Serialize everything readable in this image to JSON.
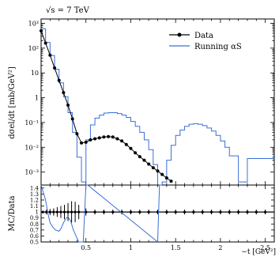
{
  "chart_data": [
    {
      "type": "line",
      "title": "√s = 7 TeV",
      "ylabel": "dσel/dt [mb/GeV²]",
      "xlabel": "",
      "xlim": [
        0,
        2.6
      ],
      "ylim": [
        0.0003,
        1500
      ],
      "yscale": "log",
      "grid": false,
      "legend": "top-right",
      "ytick_labels": [
        "10⁻³",
        "10⁻²",
        "10⁻¹",
        "1",
        "10",
        "10²",
        "10³"
      ],
      "ytick_values": [
        0.001,
        0.01,
        0.1,
        1,
        10,
        100,
        1000
      ],
      "series": [
        {
          "name": "Data",
          "style": "markers",
          "color": "#000000",
          "x": [
            0.0,
            0.05,
            0.1,
            0.15,
            0.2,
            0.25,
            0.3,
            0.35,
            0.4,
            0.45,
            0.5,
            0.55,
            0.6,
            0.65,
            0.7,
            0.75,
            0.8,
            0.85,
            0.9,
            0.95,
            1.0,
            1.05,
            1.1,
            1.15,
            1.2,
            1.25,
            1.3,
            1.35,
            1.4,
            1.45
          ],
          "y": [
            500,
            160,
            52,
            16,
            5,
            1.6,
            0.5,
            0.14,
            0.035,
            0.015,
            0.016,
            0.02,
            0.022,
            0.024,
            0.026,
            0.027,
            0.026,
            0.022,
            0.018,
            0.013,
            0.009,
            0.006,
            0.0042,
            0.003,
            0.0021,
            0.0015,
            0.0011,
            0.0008,
            0.00058,
            0.00043
          ]
        },
        {
          "name": "Running αS",
          "style": "step",
          "color": "#3a6fd8",
          "x": [
            0.0,
            0.05,
            0.1,
            0.15,
            0.2,
            0.25,
            0.3,
            0.35,
            0.4,
            0.45,
            0.5,
            0.55,
            0.6,
            0.65,
            0.7,
            0.75,
            0.8,
            0.85,
            0.9,
            0.95,
            1.0,
            1.05,
            1.1,
            1.15,
            1.2,
            1.25,
            1.3,
            1.35,
            1.4,
            1.45,
            1.5,
            1.55,
            1.6,
            1.65,
            1.7,
            1.75,
            1.8,
            1.85,
            1.9,
            1.95,
            2.0,
            2.05,
            2.1,
            2.2,
            2.3,
            2.4,
            2.6
          ],
          "y": [
            600,
            170,
            50,
            14,
            4,
            1.1,
            0.25,
            0.04,
            0.004,
            0.0004,
            0.02,
            0.08,
            0.15,
            0.2,
            0.24,
            0.25,
            0.25,
            0.23,
            0.2,
            0.16,
            0.11,
            0.07,
            0.04,
            0.02,
            0.008,
            0.002,
            0.0003,
            0.0004,
            0.003,
            0.012,
            0.03,
            0.05,
            0.07,
            0.085,
            0.09,
            0.085,
            0.075,
            0.06,
            0.045,
            0.03,
            0.018,
            0.01,
            0.0045,
            0.0004,
            0.0035,
            0.0035,
            0.004
          ]
        }
      ]
    },
    {
      "type": "line",
      "title": "",
      "ylabel": "MC/Data",
      "xlabel": "−t [GeV²]",
      "xlim": [
        0,
        2.6
      ],
      "ylim": [
        0.5,
        1.45
      ],
      "grid": false,
      "xtick_labels": [
        "0.5",
        "1",
        "1.5",
        "2",
        "2.5"
      ],
      "xtick_values": [
        0.5,
        1.0,
        1.5,
        2.0,
        2.5
      ],
      "ytick_labels": [
        "0.5",
        "0.6",
        "0.7",
        "0.8",
        "0.9",
        "1",
        "1.1",
        "1.2",
        "1.3",
        "1.4"
      ],
      "ytick_values": [
        0.5,
        0.6,
        0.7,
        0.8,
        0.9,
        1.0,
        1.1,
        1.2,
        1.3,
        1.4
      ],
      "series": [
        {
          "name": "Running αS",
          "style": "line",
          "color": "#3a6fd8",
          "x": [
            0.0,
            0.05,
            0.08,
            0.1,
            0.13,
            0.16,
            0.2,
            0.22,
            0.25,
            0.28,
            0.3,
            0.33,
            0.36,
            0.39,
            0.42,
            0.47,
            0.5,
            0.52,
            1.3,
            1.32,
            1.35
          ],
          "y": [
            1.45,
            1.2,
            0.95,
            0.82,
            0.75,
            0.7,
            0.68,
            0.72,
            0.82,
            0.9,
            0.92,
            0.85,
            0.7,
            0.6,
            0.5,
            0.5,
            1.45,
            1.45,
            0.5,
            1.45,
            1.45
          ]
        },
        {
          "name": "Data",
          "style": "bands",
          "color": "#000000",
          "x": [
            0.02,
            0.06,
            0.1,
            0.14,
            0.18,
            0.22,
            0.26,
            0.3,
            0.34,
            0.38,
            0.42,
            0.5,
            0.6,
            0.7,
            0.8,
            0.9,
            1.0,
            1.1,
            1.2,
            1.3,
            1.4,
            1.5,
            1.6,
            1.7,
            1.8,
            1.9,
            2.0,
            2.1,
            2.2,
            2.3,
            2.4,
            2.5
          ],
          "err": [
            0.02,
            0.04,
            0.05,
            0.06,
            0.08,
            0.1,
            0.12,
            0.15,
            0.18,
            0.17,
            0.12,
            0.06,
            0.04,
            0.04,
            0.04,
            0.04,
            0.04,
            0.04,
            0.04,
            0.04,
            0.04,
            0.04,
            0.04,
            0.04,
            0.04,
            0.04,
            0.04,
            0.04,
            0.04,
            0.04,
            0.04,
            0.04
          ]
        }
      ]
    }
  ]
}
